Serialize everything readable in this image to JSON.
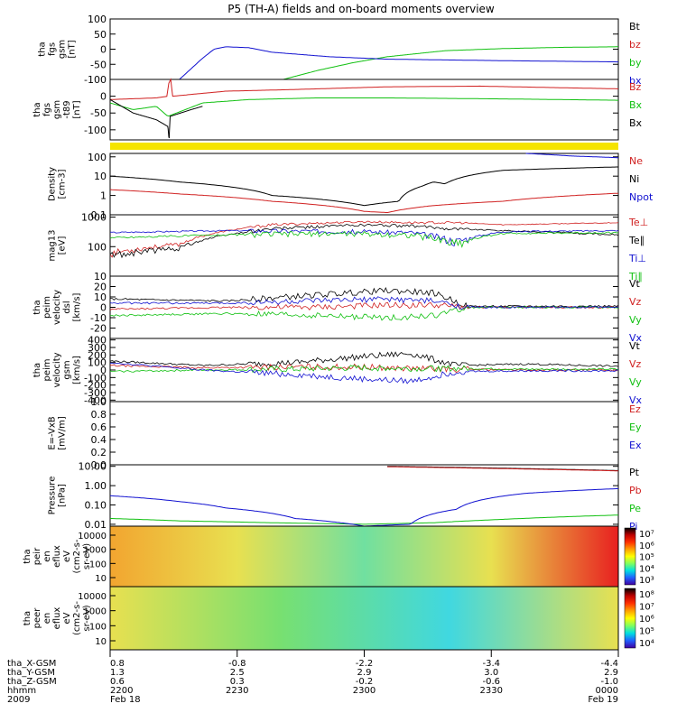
{
  "title": "P5 (TH-A) fields and on-board moments overview",
  "time_axis": {
    "ticks": [
      "2200",
      "2230",
      "2300",
      "2330",
      "0000"
    ],
    "ephemeris": [
      {
        "label": "tha_X-GSM",
        "values": [
          "0.8",
          "-0.8",
          "-2.2",
          "-3.4",
          "-4.4"
        ]
      },
      {
        "label": "tha_Y-GSM",
        "values": [
          "1.3",
          "2.5",
          "2.9",
          "3.0",
          "2.9"
        ]
      },
      {
        "label": "tha_Z-GSM",
        "values": [
          "0.6",
          "0.3",
          "-0.2",
          "-0.6",
          "-1.0"
        ]
      },
      {
        "label": "hhmm",
        "values": [
          "2200",
          "2230",
          "2300",
          "2330",
          "0000"
        ]
      }
    ],
    "year": "2009",
    "start_date": "Feb 18",
    "end_date": "Feb 19"
  },
  "colors": {
    "black": "#000000",
    "red": "#d02020",
    "green": "#10c010",
    "blue": "#1010d0",
    "yellow": "#f5e400"
  },
  "chart_data": [
    {
      "type": "line",
      "scale": "linear",
      "ylabel": [
        "tha",
        "fgs",
        "gsm",
        "[nT]"
      ],
      "ylim": [
        -100,
        100
      ],
      "yticks": [
        "100",
        "50",
        "0",
        "-50",
        "-100"
      ],
      "series": [
        {
          "name": "Bt",
          "color": "#000000",
          "values": []
        },
        {
          "name": "bz",
          "color": "#d02020",
          "values": []
        },
        {
          "name": "by",
          "color": "#10c010",
          "x": [
            22.55,
            22.7,
            22.85,
            23.0,
            23.25,
            23.5,
            23.75,
            24.0
          ],
          "values": [
            -100,
            -70,
            -45,
            -25,
            -5,
            2,
            6,
            8
          ]
        },
        {
          "name": "bx",
          "color": "#1010d0",
          "x": [
            22.1,
            22.2,
            22.25,
            22.3,
            22.4,
            22.5,
            22.75,
            23.0,
            23.5,
            24.0
          ],
          "values": [
            -100,
            -30,
            0,
            8,
            5,
            -10,
            -25,
            -33,
            -38,
            -42
          ]
        }
      ]
    },
    {
      "type": "line",
      "scale": "linear",
      "ylabel": [
        "tha",
        "fgs",
        "gsm",
        "-t89",
        "[nT]"
      ],
      "ylim": [
        -130,
        50
      ],
      "yticks": [
        "0",
        "-50",
        "-100"
      ],
      "series": [
        {
          "name": "Bz",
          "color": "#d02020",
          "x": [
            21.8,
            22.0,
            22.05,
            22.06,
            22.07,
            22.3,
            22.6,
            23.0,
            23.4,
            24.0
          ],
          "values": [
            -10,
            -5,
            0,
            100,
            0,
            15,
            20,
            28,
            30,
            22
          ]
        },
        {
          "name": "Bx",
          "color": "#10c010",
          "x": [
            21.8,
            21.9,
            22.0,
            22.05,
            22.2,
            22.4,
            22.7,
            23.0,
            23.5,
            24.0
          ],
          "values": [
            -20,
            -40,
            -30,
            -60,
            -20,
            -10,
            -5,
            -5,
            -8,
            -12
          ]
        },
        {
          "name": "Bx",
          "color": "#000000",
          "x": [
            21.8,
            21.9,
            22.0,
            22.05,
            22.055,
            22.06,
            22.15,
            22.2
          ],
          "values": [
            -10,
            -50,
            -70,
            -90,
            -130,
            -60,
            -40,
            -30
          ]
        }
      ]
    },
    {
      "type": "band",
      "color": "#f5e400"
    },
    {
      "type": "line",
      "scale": "log",
      "ylabel": [
        "Density",
        "[cm-3]"
      ],
      "ylim": [
        0.1,
        150
      ],
      "yticks": [
        "100",
        "10",
        "1",
        "0.1"
      ],
      "series": [
        {
          "name": "Ne",
          "color": "#d02020",
          "x": [
            21.8,
            22.1,
            22.5,
            22.9,
            23.0,
            23.2,
            23.5,
            24.0
          ],
          "values": [
            2.0,
            1.2,
            0.5,
            0.15,
            0.13,
            0.3,
            0.5,
            1.3
          ]
        },
        {
          "name": "Ni",
          "color": "#000000",
          "x": [
            21.8,
            22.1,
            22.5,
            22.9,
            23.05,
            23.15,
            23.2,
            23.25,
            23.5,
            24.0
          ],
          "values": [
            10,
            5,
            1.0,
            0.3,
            0.5,
            3,
            5,
            4,
            20,
            30
          ]
        },
        {
          "name": "Npot",
          "color": "#1010d0",
          "x": [
            23.6,
            23.8,
            24.0
          ],
          "values": [
            150,
            110,
            90
          ]
        }
      ]
    },
    {
      "type": "line",
      "scale": "log",
      "ylabel": [
        "mag13",
        "[eV]"
      ],
      "ylim": [
        10,
        1200
      ],
      "yticks": [
        "1000",
        "100",
        "10"
      ],
      "series": [
        {
          "name": "Te⊥",
          "color": "#d02020",
          "x": [
            21.8,
            22.1,
            22.5,
            22.9,
            23.1,
            23.3,
            23.5,
            24.0
          ],
          "values": [
            60,
            120,
            550,
            700,
            650,
            650,
            550,
            650
          ]
        },
        {
          "name": "Te∥",
          "color": "#000000",
          "x": [
            21.8,
            22.1,
            22.5,
            22.9,
            23.1,
            23.3,
            23.5,
            24.0
          ],
          "values": [
            50,
            90,
            400,
            550,
            500,
            400,
            350,
            250
          ]
        },
        {
          "name": "Ti⊥",
          "color": "#1010d0",
          "x": [
            21.8,
            22.3,
            22.8,
            23.1,
            23.3,
            23.5,
            24.0
          ],
          "values": [
            300,
            350,
            330,
            300,
            150,
            320,
            350
          ]
        },
        {
          "name": "Ti∥",
          "color": "#10c010",
          "x": [
            21.8,
            22.3,
            22.8,
            23.1,
            23.3,
            23.5,
            24.0
          ],
          "values": [
            200,
            250,
            280,
            250,
            130,
            280,
            300
          ]
        }
      ]
    },
    {
      "type": "line",
      "scale": "linear",
      "ylabel": [
        "tha",
        "peim",
        "velocity",
        "dsl",
        "[km/s]"
      ],
      "ylim": [
        -30,
        30
      ],
      "yticks": [
        "20",
        "10",
        "0",
        "-10",
        "-20"
      ],
      "series": [
        {
          "name": "Vt",
          "color": "#000000",
          "x": [
            21.8,
            22.3,
            22.7,
            23.0,
            23.2,
            23.35,
            24.0
          ],
          "values": [
            8,
            6,
            12,
            16,
            14,
            1,
            1
          ]
        },
        {
          "name": "Vz",
          "color": "#d02020",
          "x": [
            21.8,
            22.3,
            22.7,
            23.0,
            23.2,
            23.35,
            24.0
          ],
          "values": [
            -2,
            0,
            0,
            2,
            2,
            0,
            0
          ]
        },
        {
          "name": "Vy",
          "color": "#10c010",
          "x": [
            21.8,
            22.3,
            22.7,
            23.0,
            23.2,
            23.35,
            24.0
          ],
          "values": [
            -8,
            -6,
            -8,
            -10,
            -8,
            0,
            0
          ]
        },
        {
          "name": "Vx",
          "color": "#1010d0",
          "x": [
            21.8,
            22.3,
            22.7,
            23.0,
            23.2,
            23.35,
            24.0
          ],
          "values": [
            4,
            4,
            6,
            8,
            6,
            0,
            0
          ]
        }
      ]
    },
    {
      "type": "line",
      "scale": "linear",
      "ylabel": [
        "tha",
        "peim",
        "velocity",
        "gsm",
        "[km/s]"
      ],
      "ylim": [
        -420,
        420
      ],
      "yticks": [
        "400",
        "300",
        "200",
        "100",
        "0",
        "-100",
        "-200",
        "-300",
        "-400"
      ],
      "series": [
        {
          "name": "Vt",
          "color": "#000000",
          "x": [
            21.8,
            22.2,
            22.6,
            22.9,
            23.1,
            23.3,
            23.6,
            24.0
          ],
          "values": [
            120,
            60,
            100,
            180,
            220,
            60,
            80,
            50
          ]
        },
        {
          "name": "Vz",
          "color": "#d02020",
          "x": [
            21.8,
            22.2,
            22.6,
            22.9,
            23.1,
            23.3,
            23.6,
            24.0
          ],
          "values": [
            60,
            30,
            40,
            40,
            20,
            10,
            0,
            0
          ]
        },
        {
          "name": "Vy",
          "color": "#10c010",
          "x": [
            21.8,
            22.2,
            22.6,
            22.9,
            23.1,
            23.3,
            23.6,
            24.0
          ],
          "values": [
            -20,
            0,
            10,
            30,
            20,
            20,
            10,
            10
          ]
        },
        {
          "name": "Vx",
          "color": "#1010d0",
          "x": [
            21.8,
            22.2,
            22.6,
            22.9,
            23.1,
            23.3,
            23.6,
            24.0
          ],
          "values": [
            100,
            0,
            -60,
            -120,
            -150,
            -20,
            -10,
            -10
          ]
        }
      ]
    },
    {
      "type": "line",
      "scale": "linear",
      "ylabel": [
        "E=-VxB",
        "[mV/m]"
      ],
      "ylim": [
        0,
        1
      ],
      "yticks": [
        "1.0",
        "0.8",
        "0.6",
        "0.4",
        "0.2",
        "0.0"
      ],
      "series": [
        {
          "name": "Ez",
          "color": "#d02020",
          "values": []
        },
        {
          "name": "Ey",
          "color": "#10c010",
          "values": []
        },
        {
          "name": "Ex",
          "color": "#1010d0",
          "values": []
        }
      ]
    },
    {
      "type": "line",
      "scale": "log",
      "ylabel": [
        "Pressure",
        "[nPa]"
      ],
      "ylim": [
        0.008,
        12
      ],
      "yticks": [
        "10.00",
        "1.00",
        "0.10",
        "0.01"
      ],
      "series": [
        {
          "name": "Pt",
          "color": "#000000",
          "x": [
            23.0,
            23.5,
            24.0
          ],
          "values": [
            10,
            8,
            6
          ]
        },
        {
          "name": "Pb",
          "color": "#d02020",
          "x": [
            23.0,
            23.5,
            24.0
          ],
          "values": [
            9.5,
            7.6,
            5.8
          ]
        },
        {
          "name": "Pe",
          "color": "#10c010",
          "x": [
            21.8,
            22.1,
            22.5,
            22.9,
            23.2,
            23.5,
            24.0
          ],
          "values": [
            0.02,
            0.015,
            0.012,
            0.01,
            0.012,
            0.018,
            0.03
          ]
        },
        {
          "name": "Pi",
          "color": "#1010d0",
          "x": [
            21.8,
            22.1,
            22.3,
            22.6,
            22.9,
            23.1,
            23.3,
            23.6,
            24.0
          ],
          "values": [
            0.3,
            0.15,
            0.07,
            0.02,
            0.008,
            0.01,
            0.06,
            0.4,
            0.7
          ]
        }
      ]
    },
    {
      "type": "heatmap",
      "ylabel": [
        "tha",
        "peir",
        "en",
        "eflux",
        "eV",
        "(cm2-s-",
        "sr-eV)"
      ],
      "yticks": [
        "10000",
        "1000",
        "100",
        "10"
      ],
      "colorbar_ticks": [
        "10⁷",
        "10⁶",
        "10⁵",
        "10⁴",
        "10³"
      ],
      "description": [
        "orange",
        "yellow",
        "green-cyan",
        "yellow",
        "red"
      ]
    },
    {
      "type": "heatmap",
      "ylabel": [
        "tha",
        "peer",
        "en",
        "eflux",
        "eV",
        "(cm2-s-",
        "sr-eV)"
      ],
      "yticks": [
        "10000",
        "1000",
        "100",
        "10"
      ],
      "colorbar_ticks": [
        "10⁸",
        "10⁷",
        "10⁶",
        "10⁵",
        "10⁴"
      ],
      "description": [
        "yellow",
        "green",
        "cyan",
        "yellow"
      ]
    }
  ]
}
